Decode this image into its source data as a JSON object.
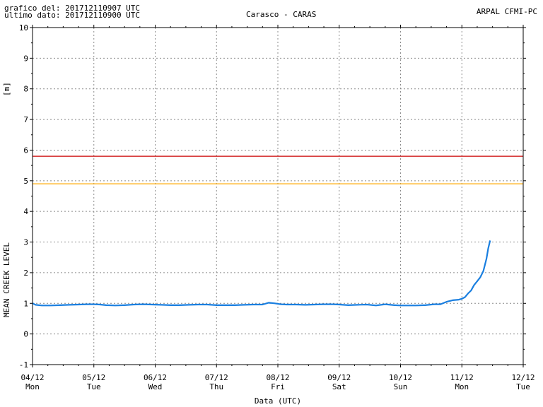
{
  "header": {
    "graph_time": "grafico del: 201712110907 UTC",
    "last_data": "ultimo dato: 201712110900 UTC",
    "title": "Carasco - CARAS",
    "source": "ARPAL CFMI-PC"
  },
  "chart_data": {
    "type": "line",
    "title": "Carasco - CARAS",
    "xlabel": "Data (UTC)",
    "ylabel": "MEAN CREEK LEVEL",
    "yunit": "[m]",
    "ylim": [
      -1,
      10
    ],
    "yticks": [
      -1,
      0,
      1,
      2,
      3,
      4,
      5,
      6,
      7,
      8,
      9,
      10
    ],
    "xlim": [
      0,
      8
    ],
    "xticks": [
      {
        "x": 0,
        "date": "04/12",
        "day": "Mon"
      },
      {
        "x": 1,
        "date": "05/12",
        "day": "Tue"
      },
      {
        "x": 2,
        "date": "06/12",
        "day": "Wed"
      },
      {
        "x": 3,
        "date": "07/12",
        "day": "Thu"
      },
      {
        "x": 4,
        "date": "08/12",
        "day": "Fri"
      },
      {
        "x": 5,
        "date": "09/12",
        "day": "Sat"
      },
      {
        "x": 6,
        "date": "10/12",
        "day": "Sun"
      },
      {
        "x": 7,
        "date": "11/12",
        "day": "Mon"
      },
      {
        "x": 8,
        "date": "12/12",
        "day": "Tue"
      }
    ],
    "grid": true,
    "thresholds": [
      {
        "value": 5.8,
        "color": "#cc0000"
      },
      {
        "value": 4.9,
        "color": "#ffaa00"
      }
    ],
    "series": [
      {
        "color": "#1a7fe0",
        "x": [
          0,
          0.05,
          0.15,
          0.3,
          0.45,
          0.6,
          0.75,
          0.9,
          1.0,
          1.1,
          1.2,
          1.35,
          1.5,
          1.65,
          1.8,
          1.95,
          2.1,
          2.25,
          2.4,
          2.55,
          2.7,
          2.85,
          3.0,
          3.15,
          3.3,
          3.45,
          3.6,
          3.75,
          3.85,
          3.95,
          4.05,
          4.15,
          4.3,
          4.45,
          4.6,
          4.75,
          4.9,
          5.0,
          5.15,
          5.3,
          5.45,
          5.6,
          5.75,
          5.9,
          6.0,
          6.1,
          6.25,
          6.4,
          6.55,
          6.65,
          6.75,
          6.85,
          6.95,
          7.0,
          7.05,
          7.1,
          7.15,
          7.2,
          7.25,
          7.3,
          7.35,
          7.4,
          7.43,
          7.46
        ],
        "y": [
          1.0,
          0.95,
          0.93,
          0.93,
          0.94,
          0.95,
          0.96,
          0.97,
          0.97,
          0.96,
          0.94,
          0.93,
          0.94,
          0.96,
          0.97,
          0.96,
          0.95,
          0.94,
          0.94,
          0.95,
          0.96,
          0.96,
          0.94,
          0.94,
          0.94,
          0.95,
          0.96,
          0.96,
          1.02,
          1.0,
          0.97,
          0.96,
          0.96,
          0.95,
          0.96,
          0.97,
          0.97,
          0.96,
          0.94,
          0.95,
          0.96,
          0.93,
          0.97,
          0.94,
          0.93,
          0.93,
          0.93,
          0.94,
          0.97,
          0.97,
          1.05,
          1.1,
          1.12,
          1.15,
          1.2,
          1.32,
          1.42,
          1.6,
          1.72,
          1.85,
          2.05,
          2.45,
          2.8,
          3.05
        ]
      }
    ]
  }
}
